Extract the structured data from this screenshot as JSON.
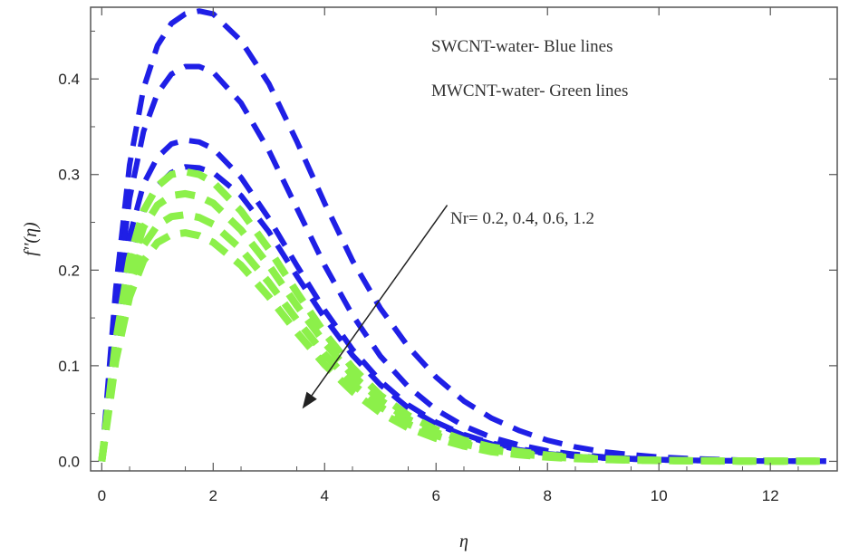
{
  "chart_data": {
    "type": "line",
    "xlabel": "η",
    "ylabel": "f''(η)",
    "xlim": [
      -0.2,
      13.2
    ],
    "ylim": [
      -0.01,
      0.475
    ],
    "x_ticks": [
      0,
      2,
      4,
      6,
      8,
      10,
      12
    ],
    "y_ticks": [
      0.0,
      0.1,
      0.2,
      0.3,
      0.4
    ],
    "x_tick_labels": [
      "0",
      "2",
      "4",
      "6",
      "8",
      "10",
      "12"
    ],
    "y_tick_labels": [
      "0.0",
      "0.1",
      "0.2",
      "0.3",
      "0.4"
    ],
    "grid": false,
    "colors": {
      "blue": "#1f1fe6",
      "green": "#8cf04a",
      "arrow": "#222222",
      "frame": "#555555"
    },
    "annotations": {
      "legend_line1": "SWCNT-water- Blue lines",
      "legend_line2": "MWCNT-water- Green lines",
      "parameter": "Nr= 0.2, 0.4, 0.6, 1.2",
      "arrow_from": [
        6.2,
        0.268
      ],
      "arrow_to": [
        3.6,
        0.055
      ]
    },
    "x": [
      0,
      0.25,
      0.5,
      0.75,
      1,
      1.25,
      1.5,
      1.75,
      2,
      2.5,
      3,
      3.5,
      4,
      4.5,
      5,
      5.5,
      6,
      6.5,
      7,
      7.5,
      8,
      8.5,
      9,
      9.5,
      10,
      10.5,
      11,
      11.5,
      12,
      12.5,
      13
    ],
    "series": [
      {
        "group": "blue",
        "values": [
          0,
          0.18,
          0.31,
          0.39,
          0.435,
          0.458,
          0.468,
          0.471,
          0.468,
          0.44,
          0.395,
          0.335,
          0.27,
          0.21,
          0.16,
          0.12,
          0.088,
          0.063,
          0.045,
          0.032,
          0.022,
          0.015,
          0.01,
          0.007,
          0.0045,
          0.003,
          0.002,
          0.0013,
          0.0008,
          0.0005,
          0.0003
        ]
      },
      {
        "group": "blue",
        "values": [
          0,
          0.16,
          0.275,
          0.345,
          0.385,
          0.405,
          0.413,
          0.413,
          0.407,
          0.375,
          0.325,
          0.265,
          0.205,
          0.153,
          0.11,
          0.078,
          0.054,
          0.037,
          0.025,
          0.017,
          0.011,
          0.0072,
          0.0047,
          0.003,
          0.0019,
          0.0012,
          0.0008,
          0.0005,
          0.0003,
          0.0002,
          0.0001
        ]
      },
      {
        "group": "blue",
        "values": [
          0,
          0.14,
          0.235,
          0.29,
          0.318,
          0.332,
          0.336,
          0.334,
          0.327,
          0.297,
          0.254,
          0.205,
          0.158,
          0.117,
          0.084,
          0.059,
          0.041,
          0.028,
          0.019,
          0.013,
          0.0085,
          0.0055,
          0.0036,
          0.0023,
          0.0015,
          0.001,
          0.0006,
          0.0004,
          0.0003,
          0.0002,
          0.0001
        ]
      },
      {
        "group": "blue",
        "values": [
          0,
          0.13,
          0.215,
          0.263,
          0.288,
          0.302,
          0.308,
          0.307,
          0.302,
          0.278,
          0.24,
          0.194,
          0.15,
          0.111,
          0.08,
          0.056,
          0.039,
          0.027,
          0.018,
          0.012,
          0.008,
          0.0052,
          0.0034,
          0.0022,
          0.0014,
          0.0009,
          0.0006,
          0.0004,
          0.0003,
          0.0002,
          0.0001
        ]
      },
      {
        "group": "green",
        "values": [
          0,
          0.125,
          0.212,
          0.262,
          0.288,
          0.3,
          0.303,
          0.3,
          0.292,
          0.262,
          0.222,
          0.177,
          0.134,
          0.098,
          0.069,
          0.048,
          0.033,
          0.022,
          0.015,
          0.01,
          0.0065,
          0.0042,
          0.0027,
          0.0017,
          0.0011,
          0.0007,
          0.0005,
          0.0003,
          0.0002,
          0.0001,
          0.0001
        ]
      },
      {
        "group": "green",
        "values": [
          0,
          0.12,
          0.2,
          0.245,
          0.268,
          0.278,
          0.28,
          0.277,
          0.27,
          0.242,
          0.205,
          0.163,
          0.124,
          0.09,
          0.064,
          0.044,
          0.03,
          0.02,
          0.013,
          0.0088,
          0.0057,
          0.0037,
          0.0024,
          0.0015,
          0.001,
          0.0006,
          0.0004,
          0.0003,
          0.0002,
          0.0001,
          0.0001
        ]
      },
      {
        "group": "green",
        "values": [
          0,
          0.112,
          0.185,
          0.226,
          0.247,
          0.256,
          0.258,
          0.255,
          0.248,
          0.222,
          0.187,
          0.148,
          0.112,
          0.081,
          0.057,
          0.039,
          0.027,
          0.018,
          0.012,
          0.0078,
          0.005,
          0.0032,
          0.0021,
          0.0013,
          0.0009,
          0.0006,
          0.0004,
          0.0002,
          0.0001,
          0.0001,
          0.0001
        ]
      },
      {
        "group": "green",
        "values": [
          0,
          0.105,
          0.172,
          0.21,
          0.229,
          0.237,
          0.239,
          0.236,
          0.229,
          0.205,
          0.172,
          0.135,
          0.101,
          0.073,
          0.051,
          0.035,
          0.024,
          0.016,
          0.01,
          0.0068,
          0.0044,
          0.0028,
          0.0018,
          0.0012,
          0.0008,
          0.0005,
          0.0003,
          0.0002,
          0.0001,
          0.0001,
          0.0001
        ]
      }
    ]
  }
}
